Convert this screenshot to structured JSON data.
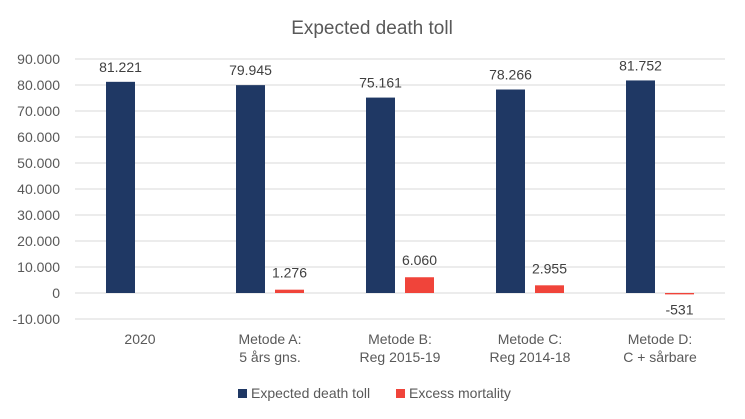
{
  "chart_data": {
    "type": "bar",
    "title": "Expected death toll",
    "categories": [
      [
        "2020"
      ],
      [
        "Metode A:",
        "5 års gns."
      ],
      [
        "Metode B:",
        "Reg 2015-19"
      ],
      [
        "Metode C:",
        "Reg 2014-18"
      ],
      [
        "Metode D:",
        "C + sårbare"
      ]
    ],
    "series": [
      {
        "name": "Expected death toll",
        "color": "#1f3864",
        "values": [
          81221,
          79945,
          75161,
          78266,
          81752
        ],
        "labels": [
          "81.221",
          "79.945",
          "75.161",
          "78.266",
          "81.752"
        ]
      },
      {
        "name": "Excess mortality",
        "color": "#f0443a",
        "values": [
          null,
          1276,
          6060,
          2955,
          -531
        ],
        "labels": [
          "",
          "1.276",
          "6.060",
          "2.955",
          "-531"
        ]
      }
    ],
    "yticks": [
      "-10.000",
      "0",
      "10.000",
      "20.000",
      "30.000",
      "40.000",
      "50.000",
      "60.000",
      "70.000",
      "80.000",
      "90.000"
    ],
    "ylim": [
      -10000,
      90000
    ],
    "grid": true,
    "legend": "bottom"
  }
}
